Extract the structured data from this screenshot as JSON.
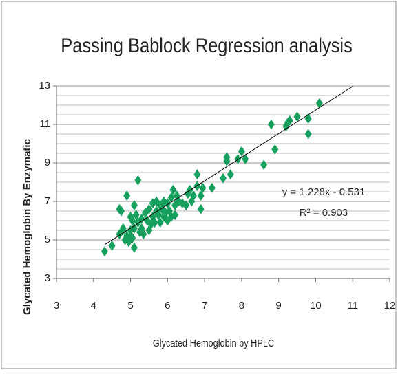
{
  "chart_data": {
    "type": "scatter",
    "title": "Passing Bablock Regression analysis",
    "xlabel": "Glycated Hemoglobin by HPLC",
    "ylabel": "Glycated Hemoglobin By Enzymatic",
    "color": "#17a05d",
    "x": [
      4.3,
      4.5,
      4.7,
      4.7,
      4.75,
      4.8,
      4.85,
      4.9,
      4.9,
      4.95,
      5.0,
      5.0,
      5.05,
      5.05,
      5.1,
      5.1,
      5.1,
      5.15,
      5.2,
      5.2,
      5.25,
      5.3,
      5.3,
      5.35,
      5.4,
      5.45,
      5.5,
      5.5,
      5.55,
      5.6,
      5.6,
      5.65,
      5.7,
      5.7,
      5.75,
      5.8,
      5.8,
      5.85,
      5.9,
      5.9,
      5.95,
      6.0,
      6.0,
      6.05,
      6.1,
      6.1,
      6.15,
      6.2,
      6.2,
      6.25,
      6.3,
      6.4,
      6.5,
      6.55,
      6.6,
      6.65,
      6.7,
      6.8,
      6.8,
      6.9,
      6.9,
      6.95,
      7.2,
      7.5,
      7.6,
      7.6,
      7.7,
      7.9,
      8.0,
      8.1,
      8.6,
      8.8,
      8.9,
      9.2,
      9.25,
      9.3,
      9.5,
      9.8,
      9.8,
      10.1,
      4.8,
      5.0
    ],
    "values": [
      4.4,
      4.7,
      5.3,
      6.6,
      6.5,
      5.5,
      5.0,
      5.2,
      7.3,
      4.9,
      5.2,
      6.2,
      6.0,
      5.1,
      4.6,
      6.8,
      5.6,
      6.3,
      8.1,
      5.9,
      5.4,
      5.6,
      6.1,
      5.3,
      6.4,
      6.0,
      5.5,
      6.6,
      5.8,
      6.2,
      6.9,
      5.9,
      6.5,
      7.0,
      6.3,
      5.9,
      6.8,
      6.6,
      6.2,
      7.0,
      6.4,
      6.0,
      6.9,
      6.5,
      7.2,
      6.2,
      7.6,
      6.8,
      6.3,
      7.3,
      7.0,
      6.9,
      6.8,
      7.4,
      7.6,
      7.0,
      7.3,
      7.8,
      8.4,
      7.3,
      6.6,
      7.7,
      7.7,
      8.2,
      9.1,
      9.3,
      8.4,
      9.2,
      9.6,
      9.2,
      8.9,
      11.0,
      9.7,
      10.9,
      11.1,
      11.2,
      11.4,
      10.5,
      11.3,
      12.1,
      5.6,
      5.5
    ],
    "xlim": [
      3,
      12
    ],
    "xticks": [
      3,
      4,
      5,
      6,
      7,
      8,
      9,
      10,
      11,
      12
    ],
    "ylim": [
      3,
      13
    ],
    "yticks": [
      3,
      5,
      7,
      9,
      11,
      13
    ],
    "minor_yticks": [
      3.5,
      4,
      4.5,
      5.5,
      6,
      6.5,
      7.5,
      8,
      8.5,
      9.5,
      10,
      10.5,
      11.5,
      12,
      12.5
    ],
    "grid": true,
    "trendline": {
      "slope": 1.228,
      "intercept": -0.531,
      "x": [
        4.3,
        11.0
      ],
      "color": "#000000"
    },
    "annotations": [
      "y = 1.228x - 0.531",
      "R² = 0.903"
    ]
  }
}
